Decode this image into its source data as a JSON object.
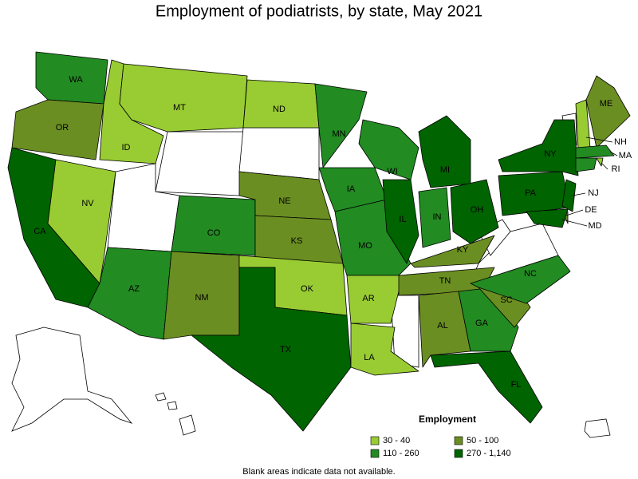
{
  "title": "Employment of podiatrists, by state, May 2021",
  "legend": {
    "title": "Employment",
    "bins": [
      {
        "label": "30 - 40",
        "color": "#99cc33"
      },
      {
        "label": "50 - 100",
        "color": "#6b8e23"
      },
      {
        "label": "110 - 260",
        "color": "#228b22"
      },
      {
        "label": "270 - 1,140",
        "color": "#006400"
      }
    ]
  },
  "states": [
    {
      "label": "WA",
      "bin": 2
    },
    {
      "label": "OR",
      "bin": 1
    },
    {
      "label": "CA",
      "bin": 3
    },
    {
      "label": "NV",
      "bin": 0
    },
    {
      "label": "ID",
      "bin": 0
    },
    {
      "label": "MT",
      "bin": 0
    },
    {
      "label": "CO",
      "bin": 2
    },
    {
      "label": "AZ",
      "bin": 2
    },
    {
      "label": "NM",
      "bin": 1
    },
    {
      "label": "ND",
      "bin": 0
    },
    {
      "label": "NE",
      "bin": 1
    },
    {
      "label": "KS",
      "bin": 1
    },
    {
      "label": "OK",
      "bin": 0
    },
    {
      "label": "TX",
      "bin": 3
    },
    {
      "label": "MN",
      "bin": 2
    },
    {
      "label": "IA",
      "bin": 2
    },
    {
      "label": "MO",
      "bin": 2
    },
    {
      "label": "AR",
      "bin": 0
    },
    {
      "label": "LA",
      "bin": 0
    },
    {
      "label": "WI",
      "bin": 2
    },
    {
      "label": "IL",
      "bin": 3
    },
    {
      "label": "MI",
      "bin": 3
    },
    {
      "label": "IN",
      "bin": 2
    },
    {
      "label": "OH",
      "bin": 3
    },
    {
      "label": "KY",
      "bin": 1
    },
    {
      "label": "TN",
      "bin": 1
    },
    {
      "label": "AL",
      "bin": 1
    },
    {
      "label": "GA",
      "bin": 2
    },
    {
      "label": "FL",
      "bin": 3
    },
    {
      "label": "SC",
      "bin": 1
    },
    {
      "label": "NC",
      "bin": 2
    },
    {
      "label": "PA",
      "bin": 3
    },
    {
      "label": "NY",
      "bin": 3
    },
    {
      "label": "NJ",
      "bin": 3
    },
    {
      "label": "DE",
      "bin": 1
    },
    {
      "label": "MD",
      "bin": 3
    },
    {
      "label": "NH",
      "bin": 0
    },
    {
      "label": "ME",
      "bin": 1
    },
    {
      "label": "MA",
      "bin": 2
    },
    {
      "label": "RI",
      "bin": 0
    },
    {
      "label": null,
      "bin": 2
    }
  ],
  "footnote": "Blank areas indicate data not available."
}
